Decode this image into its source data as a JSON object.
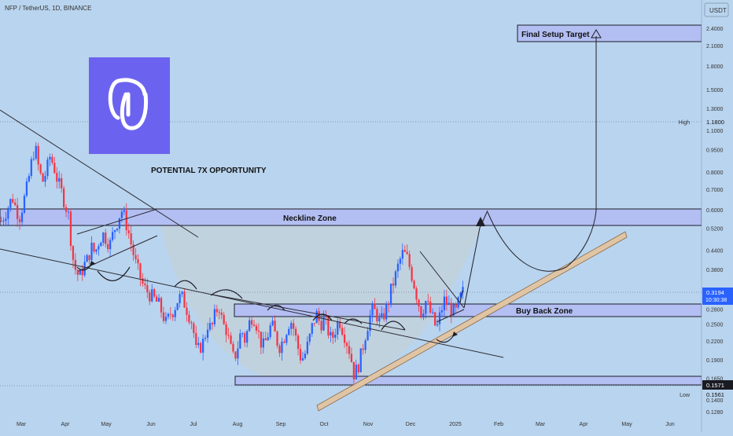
{
  "header": {
    "symbol_line": "NFP / TetherUS, 1D, BINANCE",
    "currency": "USDT"
  },
  "annotations": {
    "opportunity": "POTENTIAL 7X OPPORTUNITY",
    "target": "Final Setup Target",
    "neckline": "Neckline Zone",
    "buyback": "Buy Back Zone"
  },
  "price_tags": {
    "last_price": "0.3194",
    "countdown": "10:30:38",
    "high_label": "High",
    "high_value": "1.1800",
    "low_label": "Low",
    "low_value": "0.1561",
    "support_value": "0.1571"
  },
  "colors": {
    "background": "#b9d4ee",
    "up_candle": "#2962ff",
    "down_candle": "#f23645",
    "zone_fill": "#b3bff2",
    "zone_border": "#1c1c2a",
    "cup_fill": "#c9cfd4",
    "channel": "#d8b48c",
    "logo_bg": "#6b63f0"
  },
  "chart_data": {
    "type": "candlestick",
    "symbol": "NFP / TetherUS",
    "interval": "1D",
    "exchange": "BINANCE",
    "y_scale": "log",
    "ylim": [
      0.12,
      2.7
    ],
    "x_tick_labels": [
      "Mar",
      "Apr",
      "May",
      "Jun",
      "Jul",
      "Aug",
      "Sep",
      "Oct",
      "Nov",
      "Dec",
      "2025",
      "Feb",
      "Mar",
      "Apr",
      "May",
      "Jun"
    ],
    "y_tick_labels": [
      2.4,
      2.1,
      1.8,
      1.5,
      1.3,
      1.1,
      0.95,
      0.8,
      0.7,
      0.6,
      0.52,
      0.44,
      0.38,
      0.32,
      0.28,
      0.25,
      0.22,
      0.19,
      0.165,
      0.14,
      0.128
    ],
    "price_path": [
      0.55,
      0.58,
      0.62,
      0.66,
      0.6,
      0.57,
      0.64,
      0.72,
      0.85,
      0.98,
      0.82,
      0.74,
      0.8,
      0.9,
      0.84,
      0.75,
      0.69,
      0.63,
      0.57,
      0.42,
      0.37,
      0.36,
      0.39,
      0.41,
      0.45,
      0.43,
      0.47,
      0.5,
      0.48,
      0.46,
      0.51,
      0.55,
      0.6,
      0.56,
      0.5,
      0.44,
      0.39,
      0.36,
      0.33,
      0.32,
      0.31,
      0.3,
      0.29,
      0.27,
      0.25,
      0.27,
      0.28,
      0.3,
      0.31,
      0.29,
      0.27,
      0.25,
      0.2,
      0.21,
      0.22,
      0.25,
      0.24,
      0.27,
      0.29,
      0.25,
      0.24,
      0.21,
      0.19,
      0.21,
      0.24,
      0.22,
      0.25,
      0.27,
      0.25,
      0.22,
      0.21,
      0.23,
      0.25,
      0.23,
      0.21,
      0.22,
      0.24,
      0.26,
      0.24,
      0.21,
      0.19,
      0.2,
      0.22,
      0.25,
      0.27,
      0.25,
      0.26,
      0.24,
      0.22,
      0.24,
      0.26,
      0.24,
      0.22,
      0.2,
      0.17,
      0.18,
      0.2,
      0.23,
      0.26,
      0.28,
      0.27,
      0.25,
      0.27,
      0.29,
      0.33,
      0.36,
      0.4,
      0.43,
      0.42,
      0.38,
      0.34,
      0.3,
      0.27,
      0.3,
      0.28,
      0.26,
      0.24,
      0.27,
      0.3,
      0.29,
      0.28,
      0.27,
      0.3,
      0.319
    ],
    "zones": [
      {
        "name": "Final Setup Target",
        "from": 2.15,
        "to": 2.5
      },
      {
        "name": "Neckline Zone",
        "from": 0.53,
        "to": 0.605
      },
      {
        "name": "Buy Back Zone",
        "from": 0.256,
        "to": 0.29
      },
      {
        "name": "Support",
        "from": 0.157,
        "to": 0.168
      }
    ],
    "reference_levels": {
      "high": 1.18,
      "low": 0.1561,
      "last": 0.3194,
      "support": 0.1571
    }
  }
}
